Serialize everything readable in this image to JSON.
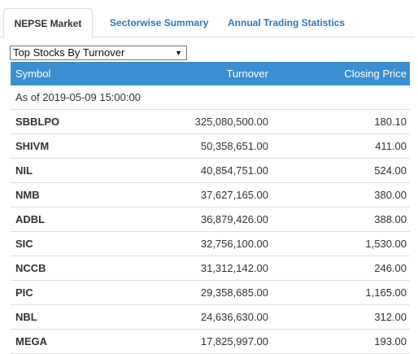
{
  "tabs": [
    {
      "label": "NEPSE Market",
      "active": true
    },
    {
      "label": "Sectorwise Summary",
      "active": false
    },
    {
      "label": "Annual Trading Statistics",
      "active": false
    }
  ],
  "dropdown": {
    "selected": "Top Stocks By Turnover"
  },
  "table": {
    "headers": {
      "symbol": "Symbol",
      "turnover": "Turnover",
      "closing_price": "Closing Price"
    },
    "as_of": "As of 2019-05-09 15:00:00",
    "rows": [
      {
        "symbol": "SBBLPO",
        "turnover": "325,080,500.00",
        "closing_price": "180.10"
      },
      {
        "symbol": "SHIVM",
        "turnover": "50,358,651.00",
        "closing_price": "411.00"
      },
      {
        "symbol": "NIL",
        "turnover": "40,854,751.00",
        "closing_price": "524.00"
      },
      {
        "symbol": "NMB",
        "turnover": "37,627,165.00",
        "closing_price": "380.00"
      },
      {
        "symbol": "ADBL",
        "turnover": "36,879,426.00",
        "closing_price": "388.00"
      },
      {
        "symbol": "SIC",
        "turnover": "32,756,100.00",
        "closing_price": "1,530.00"
      },
      {
        "symbol": "NCCB",
        "turnover": "31,312,142.00",
        "closing_price": "246.00"
      },
      {
        "symbol": "PIC",
        "turnover": "29,358,685.00",
        "closing_price": "1,165.00"
      },
      {
        "symbol": "NBL",
        "turnover": "24,636,630.00",
        "closing_price": "312.00"
      },
      {
        "symbol": "MEGA",
        "turnover": "17,825,997.00",
        "closing_price": "193.00"
      }
    ]
  },
  "colors": {
    "header_bg": "#3b8ecf",
    "tab_link": "#2a7ab8",
    "row_border": "#dddddd"
  }
}
